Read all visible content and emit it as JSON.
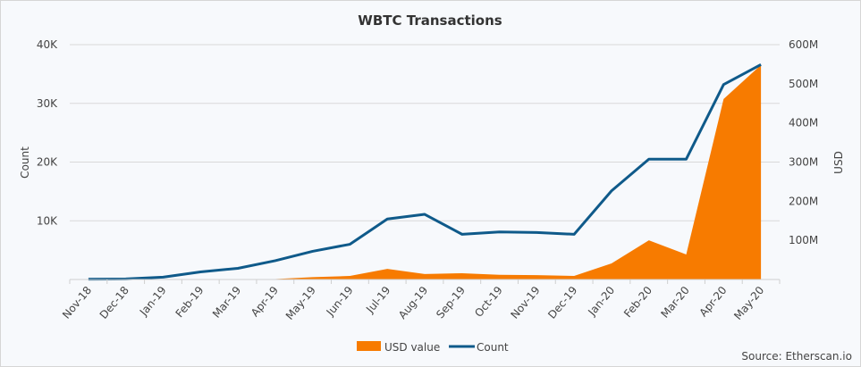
{
  "chart_data": {
    "type": "line",
    "title": "WBTC Transactions",
    "categories": [
      "Nov-18",
      "Dec-18",
      "Jan-19",
      "Feb-19",
      "Mar-19",
      "Apr-19",
      "May-19",
      "Jun-19",
      "Jul-19",
      "Aug-19",
      "Sep-19",
      "Oct-19",
      "Nov-19",
      "Dec-19",
      "Jan-20",
      "Feb-20",
      "Mar-20",
      "Apr-20",
      "May-20"
    ],
    "series": [
      {
        "name": "USD value",
        "type": "area",
        "axis": "right",
        "color": "#f77b00",
        "values": [
          0,
          0,
          0,
          0,
          0,
          1,
          6,
          9,
          27,
          14,
          16,
          12,
          11,
          9,
          41,
          100,
          64,
          461,
          548
        ]
      },
      {
        "name": "Count",
        "type": "line",
        "axis": "left",
        "color": "#0f5a8a",
        "values": [
          50,
          100,
          400,
          1300,
          1900,
          3200,
          4800,
          6000,
          10300,
          11100,
          7700,
          8100,
          8000,
          7700,
          15100,
          20500,
          20500,
          33200,
          36600
        ]
      }
    ],
    "ylabel": "Count",
    "y2label": "USD",
    "ylim": [
      0,
      40000
    ],
    "y2lim": [
      0,
      600
    ],
    "yticks": [
      "",
      "10K",
      "20K",
      "30K",
      "40K"
    ],
    "y2ticks": [
      "",
      "100M",
      "200M",
      "300M",
      "400M",
      "500M",
      "600M"
    ],
    "grid": true,
    "legend": "bottom",
    "source": "Source: Etherscan.io"
  }
}
